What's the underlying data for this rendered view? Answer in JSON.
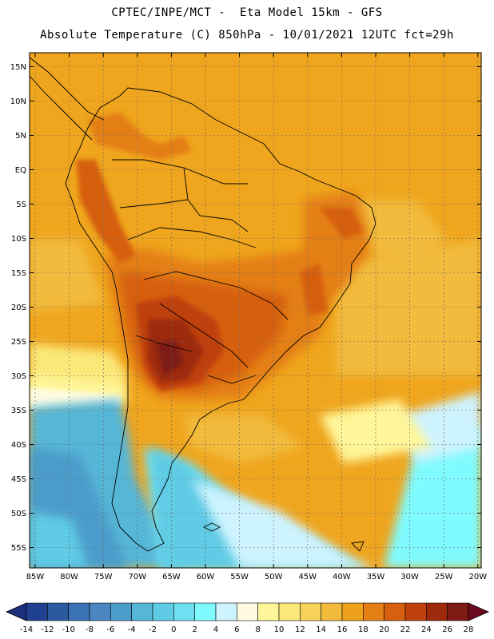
{
  "header": {
    "line1": "CPTEC/INPE/MCT -  Eta Model 15km - GFS",
    "line2": "Absolute Temperature (C) 850hPa - 10/01/2021 12UTC fct=29h"
  },
  "map": {
    "lat_labels": [
      "15N",
      "10N",
      "5N",
      "EQ",
      "5S",
      "10S",
      "15S",
      "20S",
      "25S",
      "30S",
      "35S",
      "40S",
      "45S",
      "50S",
      "55S"
    ],
    "lon_labels": [
      "85W",
      "80W",
      "75W",
      "70W",
      "65W",
      "60W",
      "55W",
      "50W",
      "45W",
      "40W",
      "35W",
      "30W",
      "25W",
      "20W"
    ]
  },
  "colorbar": {
    "labels": [
      "-14",
      "-12",
      "-10",
      "-8",
      "-6",
      "-4",
      "-2",
      "0",
      "2",
      "4",
      "6",
      "8",
      "10",
      "12",
      "14",
      "16",
      "18",
      "20",
      "22",
      "24",
      "26",
      "28"
    ],
    "colors": [
      "#1f3f8f",
      "#2c5aa0",
      "#3b72b5",
      "#4a86c1",
      "#4c9cca",
      "#56b6d6",
      "#5fcbe4",
      "#6fe0f2",
      "#7ffbff",
      "#cdf3ff",
      "#fffbe0",
      "#fff69a",
      "#fbe879",
      "#f7d25a",
      "#f2bb3c",
      "#eea21c",
      "#e47f16",
      "#d65f10",
      "#bf400c",
      "#9e2a0b",
      "#7d1a14"
    ],
    "low_color": "#1b2f7a",
    "high_color": "#6b0a1e"
  }
}
